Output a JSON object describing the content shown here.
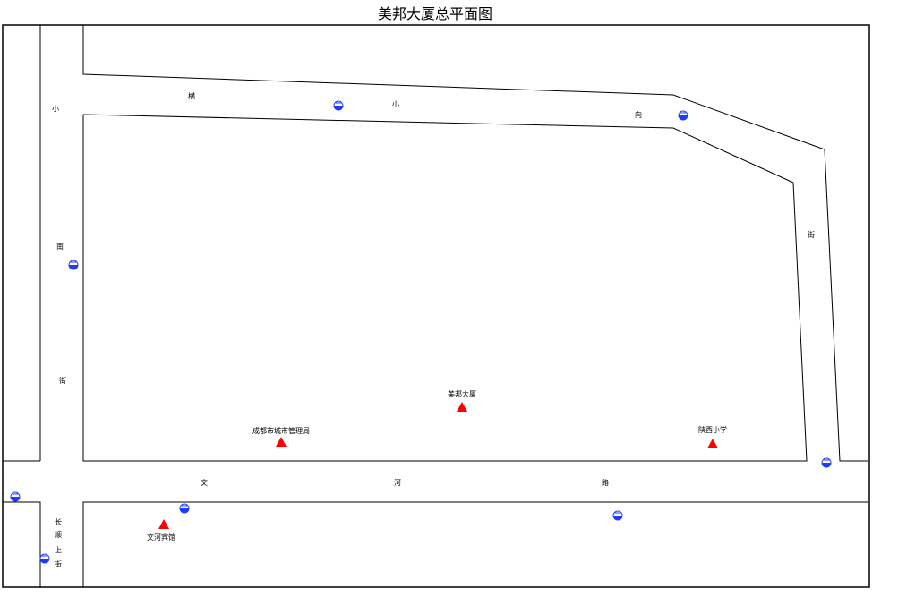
{
  "title": "美邦大厦总平面图",
  "roads": [
    {
      "name": "横小向",
      "chars": [
        "横",
        "小",
        "向"
      ]
    },
    {
      "name": "小南街",
      "chars": [
        "小",
        "南",
        "街"
      ]
    },
    {
      "name": "街",
      "chars": [
        "街"
      ]
    },
    {
      "name": "文河路",
      "chars": [
        "文",
        "河",
        "路"
      ]
    },
    {
      "name": "长顺上街",
      "chars": [
        "长",
        "顺",
        "上",
        "街"
      ]
    }
  ],
  "pois": [
    {
      "name": "美邦大厦",
      "marker": "red-triangle"
    },
    {
      "name": "成都市城市管理局",
      "marker": "red-triangle"
    },
    {
      "name": "陕西小学",
      "marker": "red-triangle"
    },
    {
      "name": "文河宾馆",
      "marker": "red-triangle"
    }
  ],
  "hydrant_icon": "fire-hydrant-icon",
  "hydrant_count": 8,
  "colors": {
    "poi": "#ff0000",
    "hydrant": "#1e3cff",
    "lines": "#000000"
  }
}
